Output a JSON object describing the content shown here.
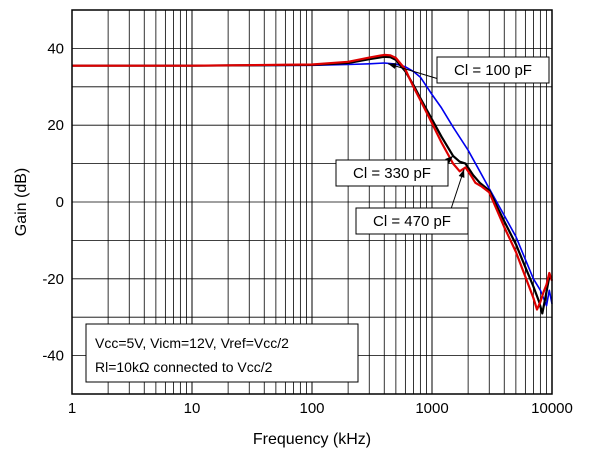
{
  "chart_data": {
    "type": "line",
    "xlabel": "Frequency (kHz)",
    "ylabel": "Gain (dB)",
    "xscale": "log",
    "xlim": [
      1,
      10000
    ],
    "ylim": [
      -50,
      50
    ],
    "xticks": [
      1,
      10,
      100,
      1000,
      10000
    ],
    "xtick_labels": [
      "1",
      "10",
      "100",
      "1000",
      "10000"
    ],
    "yticks": [
      40,
      20,
      0,
      -20,
      -40
    ],
    "ytick_labels": [
      "40",
      "20",
      "0",
      "-20",
      "-40"
    ],
    "grid": true,
    "annotation_lines": [
      "Vcc=5V, Vicm=12V, Vref=Vcc/2",
      "Rl=10kΩ connected to Vcc/2"
    ],
    "series": [
      {
        "name": "Cl = 100 pF",
        "color": "#0000ee",
        "x": [
          1,
          10,
          100,
          200,
          300,
          400,
          500,
          600,
          700,
          800,
          1000,
          1200,
          1500,
          2000,
          2500,
          3000,
          4000,
          5000,
          6000,
          7000,
          8000,
          8500,
          9000,
          9500,
          10000
        ],
        "y": [
          35.5,
          35.5,
          35.6,
          35.8,
          36.0,
          36.2,
          35.9,
          35.2,
          34.0,
          32.5,
          28.0,
          24.5,
          19.5,
          13.5,
          8.0,
          3.5,
          -3.5,
          -9.0,
          -15.0,
          -20.0,
          -23.0,
          -25.0,
          -27.0,
          -23.0,
          -26.5
        ]
      },
      {
        "name": "Cl = 330 pF",
        "color": "#000000",
        "x": [
          1,
          10,
          100,
          200,
          300,
          400,
          450,
          500,
          600,
          700,
          800,
          1000,
          1200,
          1500,
          1700,
          1900,
          2200,
          2500,
          3000,
          4000,
          5000,
          6000,
          7000,
          7800,
          8300,
          8800,
          9500,
          10000
        ],
        "y": [
          35.5,
          35.5,
          35.7,
          36.2,
          37.2,
          37.8,
          37.7,
          37.0,
          34.0,
          30.5,
          27.0,
          21.5,
          17.0,
          12.0,
          10.5,
          10.0,
          7.0,
          5.0,
          3.0,
          -5.0,
          -11.0,
          -17.0,
          -22.0,
          -26.0,
          -29.0,
          -25.0,
          -19.5,
          -20.0
        ]
      },
      {
        "name": "Cl = 470 pF",
        "color": "#dd0000",
        "x": [
          1,
          10,
          100,
          200,
          300,
          400,
          450,
          500,
          600,
          700,
          800,
          1000,
          1200,
          1500,
          1700,
          1900,
          2100,
          2300,
          2600,
          3000,
          4000,
          5000,
          6000,
          7000,
          7500,
          8000,
          8500,
          9000,
          9500,
          10000
        ],
        "y": [
          35.5,
          35.5,
          35.8,
          36.5,
          37.6,
          38.3,
          38.2,
          37.5,
          34.5,
          30.0,
          26.5,
          20.5,
          15.5,
          10.0,
          8.0,
          9.0,
          7.0,
          5.0,
          4.0,
          2.5,
          -6.5,
          -13.0,
          -19.5,
          -25.0,
          -28.0,
          -26.0,
          -23.5,
          -21.5,
          -18.5,
          -20.5
        ]
      }
    ],
    "labels": [
      {
        "text": "Cl = 100 pF",
        "series": 0,
        "at": [
          430,
          36.0
        ]
      },
      {
        "text": "Cl = 330 pF",
        "series": 1,
        "at": [
          1500,
          12.0
        ]
      },
      {
        "text": "Cl = 470 pF",
        "series": 2,
        "at": [
          1850,
          8.5
        ]
      }
    ]
  }
}
